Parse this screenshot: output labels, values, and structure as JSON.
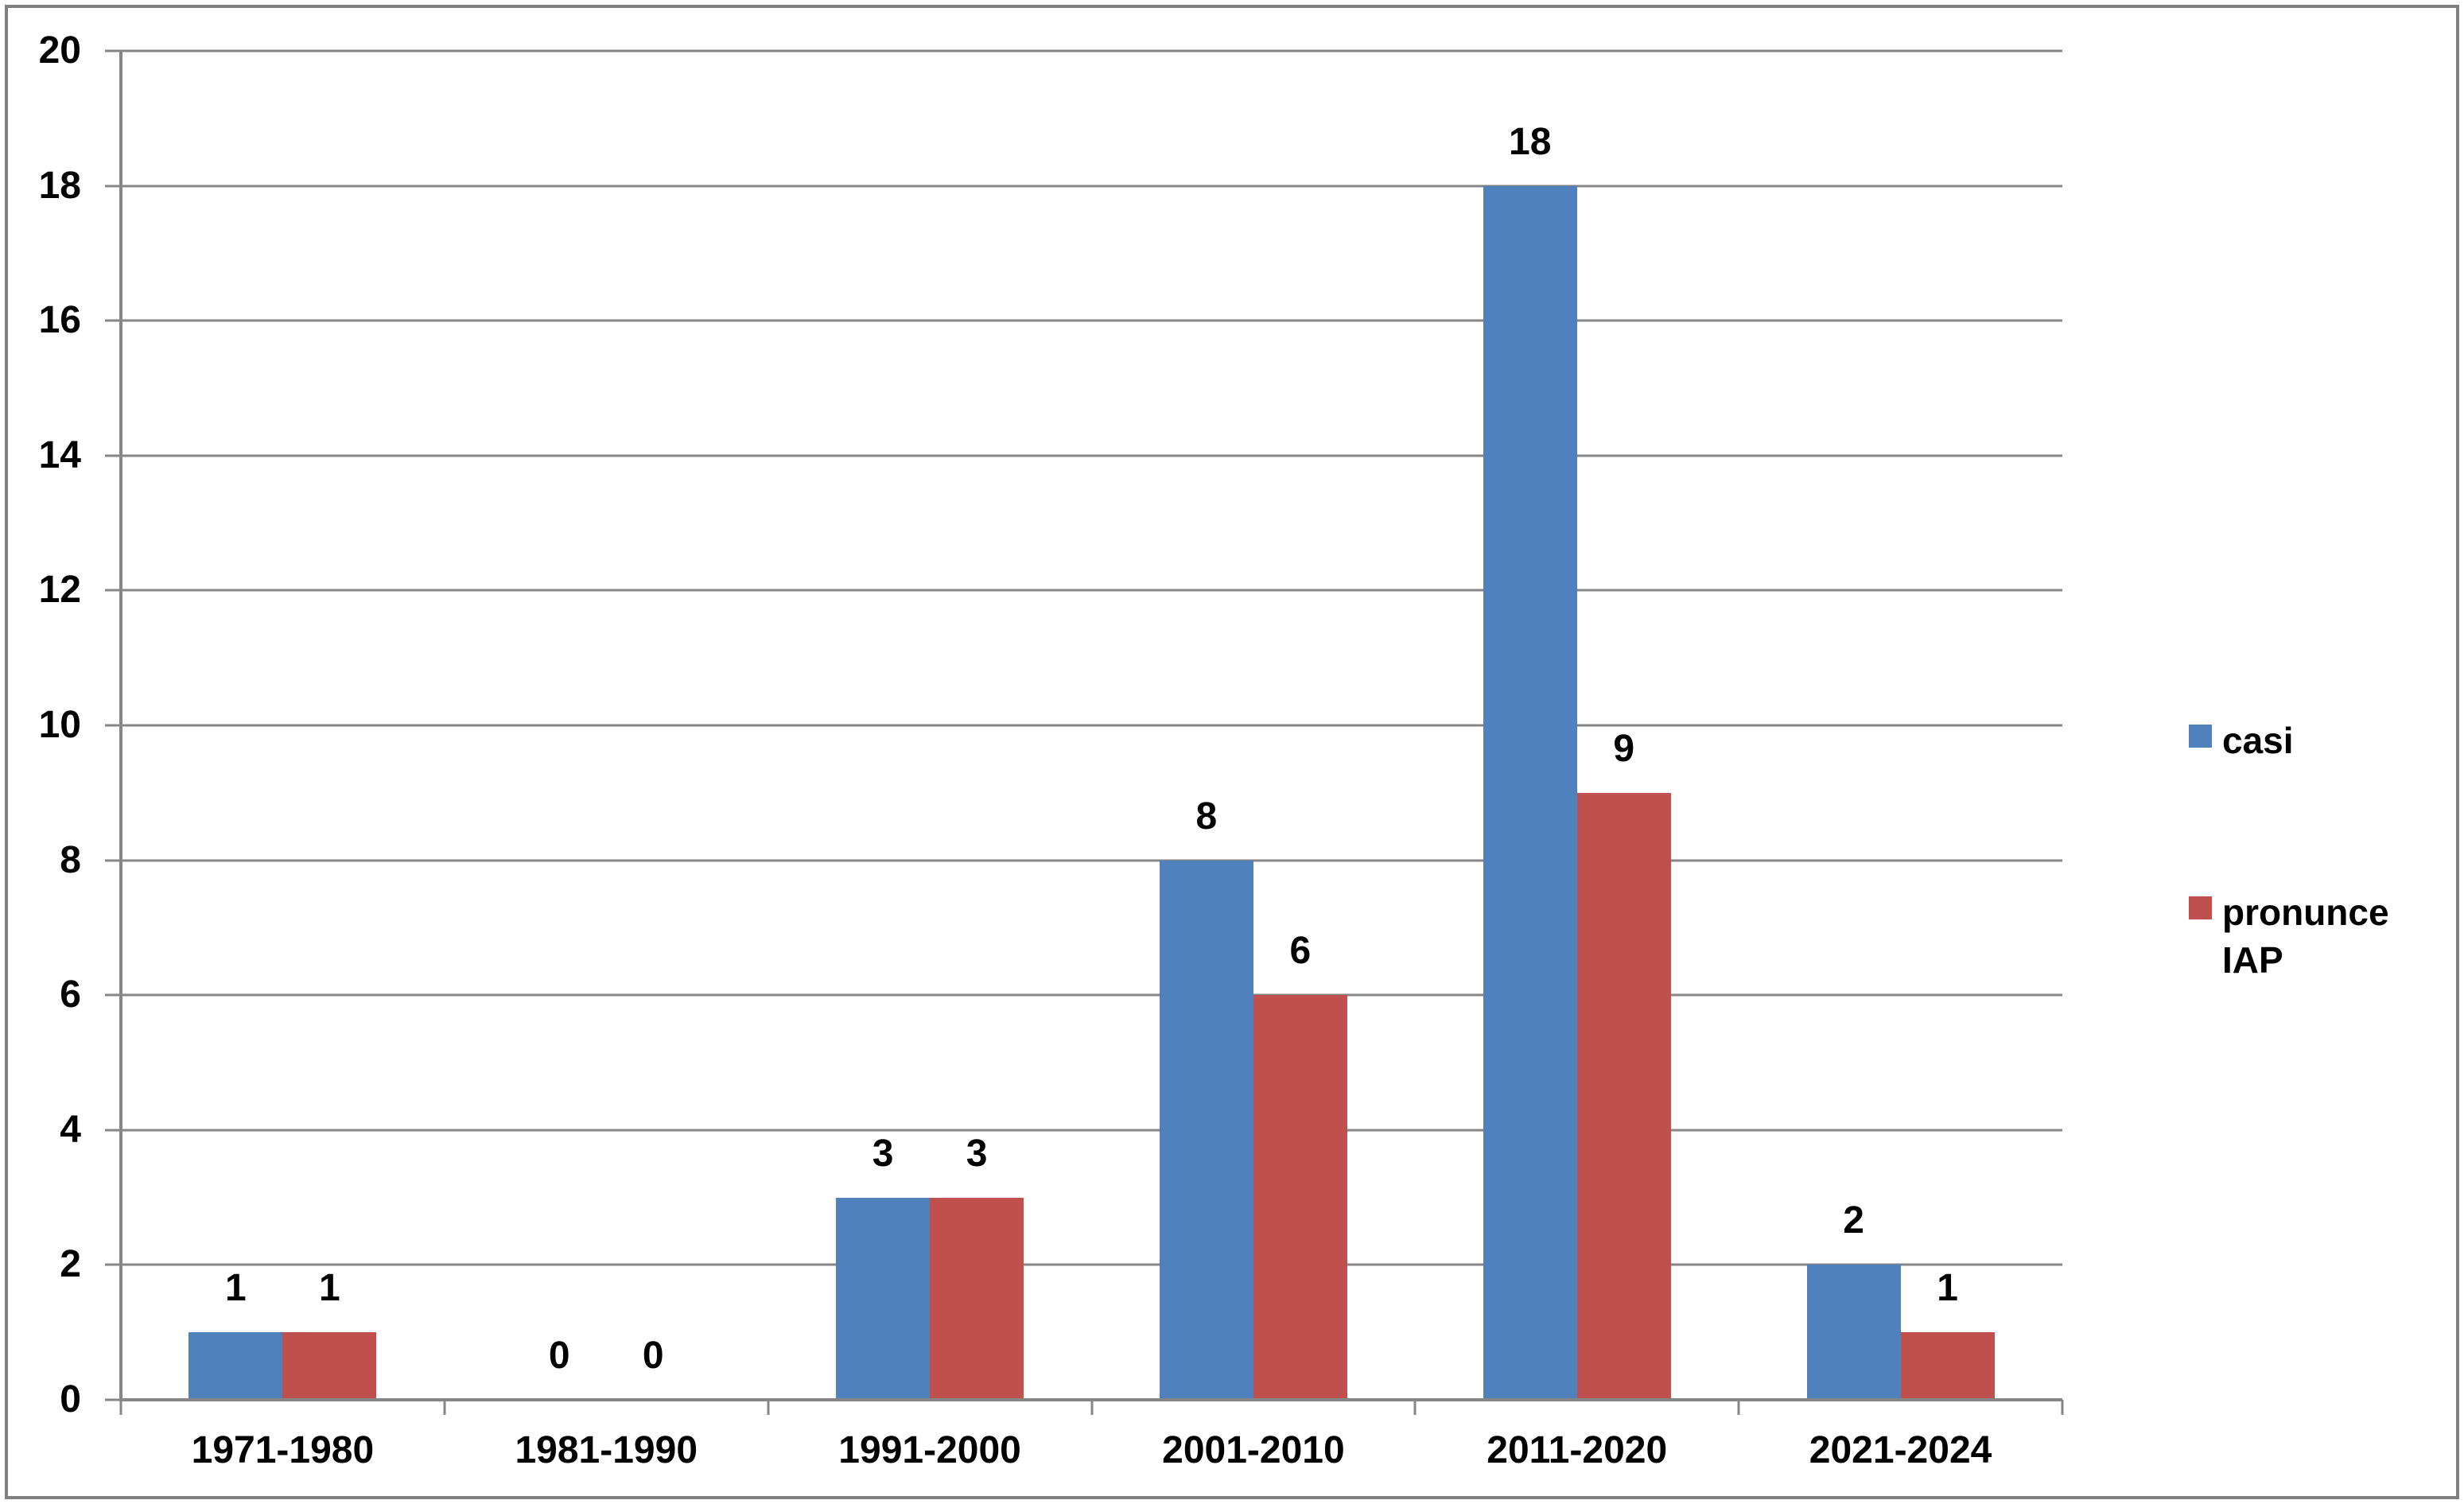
{
  "chart_data": {
    "type": "bar",
    "title": "",
    "categories": [
      "1971-1980",
      "1981-1990",
      "1991-2000",
      "2001-2010",
      "2011-2020",
      "2021-2024"
    ],
    "series": [
      {
        "name": "casi",
        "color": "#4F81BD",
        "values": [
          1,
          0,
          3,
          8,
          18,
          2
        ]
      },
      {
        "name": "pronunce IAP",
        "color": "#C0504D",
        "values": [
          1,
          0,
          3,
          6,
          9,
          1
        ]
      }
    ],
    "ylim": [
      0,
      20
    ],
    "yticks": [
      0,
      2,
      4,
      6,
      8,
      10,
      12,
      14,
      16,
      18,
      20
    ],
    "xlabel": "",
    "ylabel": "",
    "grid": true,
    "bar_value_labels": true,
    "legend_position": "right"
  },
  "legend": {
    "entries": [
      {
        "swatch_color": "#4F81BD",
        "lines": [
          "casi"
        ]
      },
      {
        "swatch_color": "#C0504D",
        "lines": [
          "pronunce",
          "IAP"
        ]
      }
    ]
  },
  "colors": {
    "axis": "#868686",
    "gridline": "#868686",
    "border": "#808080",
    "label": "#000000",
    "background": "#FFFFFF"
  }
}
